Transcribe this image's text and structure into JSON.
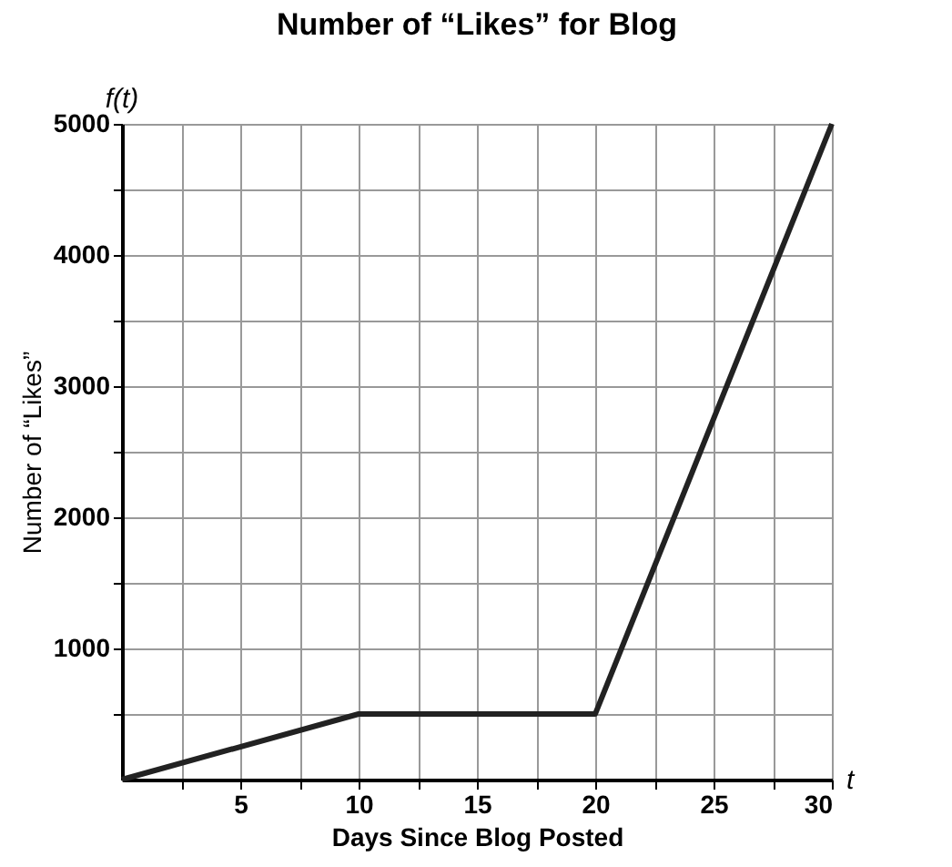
{
  "chart_data": {
    "type": "line",
    "title": "Number of “Likes” for Blog",
    "xlabel": "Days Since Blog Posted",
    "ylabel": "Number of “Likes”",
    "annotations": [
      "f(t)",
      "t"
    ],
    "x": [
      0,
      10,
      20,
      30
    ],
    "series": [
      {
        "color": "#222222",
        "values": [
          0,
          500,
          500,
          5000
        ]
      }
    ],
    "xlim": [
      0,
      30
    ],
    "ylim": [
      0,
      5000
    ],
    "xticks": [
      {
        "value": 2.5,
        "label": null
      },
      5,
      {
        "value": 7.5,
        "label": null
      },
      10,
      {
        "value": 12.5,
        "label": null
      },
      15,
      {
        "value": 17.5,
        "label": null
      },
      20,
      {
        "value": 22.5,
        "label": null
      },
      25,
      {
        "value": 27.5,
        "label": null
      },
      30
    ],
    "yticks": [
      {
        "value": 500,
        "label": null
      },
      1000,
      {
        "value": 1500,
        "label": null
      },
      2000,
      {
        "value": 2500,
        "label": null
      },
      3000,
      {
        "value": 3500,
        "label": null
      },
      4000,
      {
        "value": 4500,
        "label": null
      },
      5000
    ],
    "grid": true,
    "marker": "none",
    "line_style": "solid"
  }
}
